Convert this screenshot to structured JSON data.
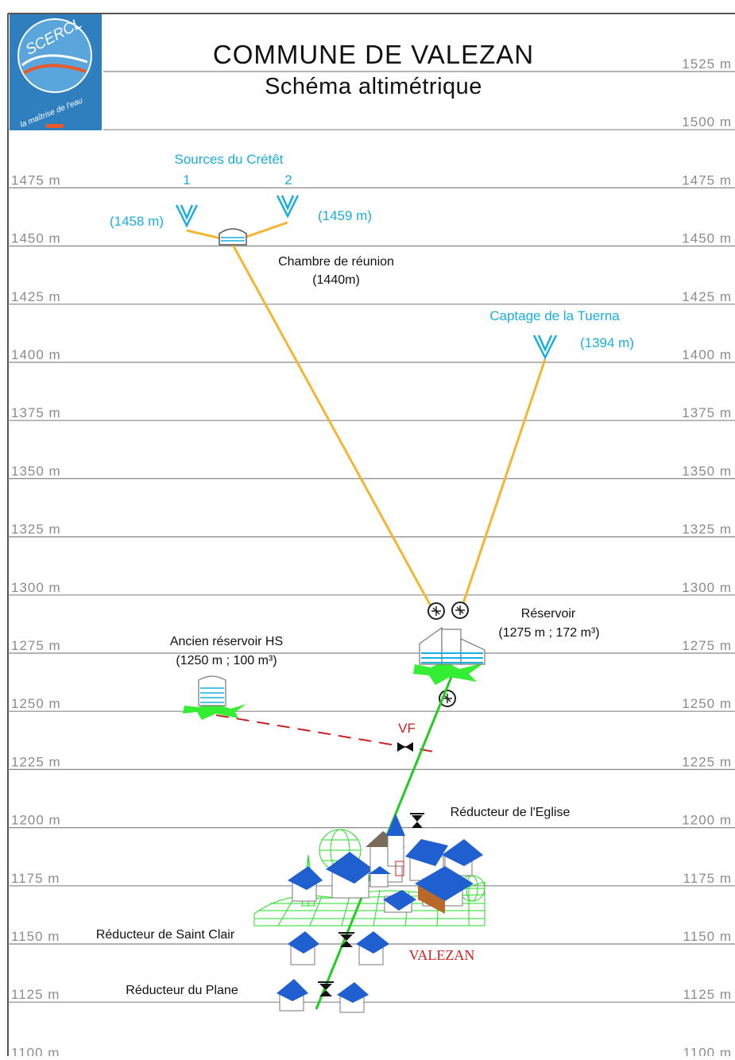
{
  "title": "COMMUNE DE VALEZAN",
  "subtitle": "Schéma altimétrique",
  "logo": {
    "name": "SCERCL",
    "tagline": "la maîtrise de l'eau",
    "color": "#2f7fbf"
  },
  "altitudes": [
    1525,
    1500,
    1475,
    1450,
    1425,
    1400,
    1375,
    1350,
    1325,
    1300,
    1275,
    1250,
    1225,
    1200,
    1175,
    1150,
    1125,
    1100
  ],
  "unit": "m",
  "labels": {
    "sources": "Sources du Crétêt",
    "source1_num": "1",
    "source2_num": "2",
    "source1_alt": "(1458 m)",
    "source2_alt": "(1459 m)",
    "chambre": "Chambre de réunion",
    "chambre_alt": "(1440m)",
    "captage": "Captage de la Tuerna",
    "captage_alt": "(1394 m)",
    "reservoir": "Réservoir",
    "reservoir_info": "(1275 m ; 172 m³)",
    "ancien": "Ancien réservoir HS",
    "ancien_info": "(1250 m ; 100 m³)",
    "vf": "VF",
    "reducteur_eglise": "Réducteur de l'Eglise",
    "reducteur_saint_clair": "Réducteur de Saint Clair",
    "reducteur_plane": "Réducteur du Plane",
    "village": "VALEZAN"
  },
  "colors": {
    "pipe_gravity": "#f2b632",
    "pipe_distribution": "#22cc22",
    "abandoned_pipe": "#cc2222",
    "water": "#1aaee0",
    "roof": "#1f5fd0"
  }
}
